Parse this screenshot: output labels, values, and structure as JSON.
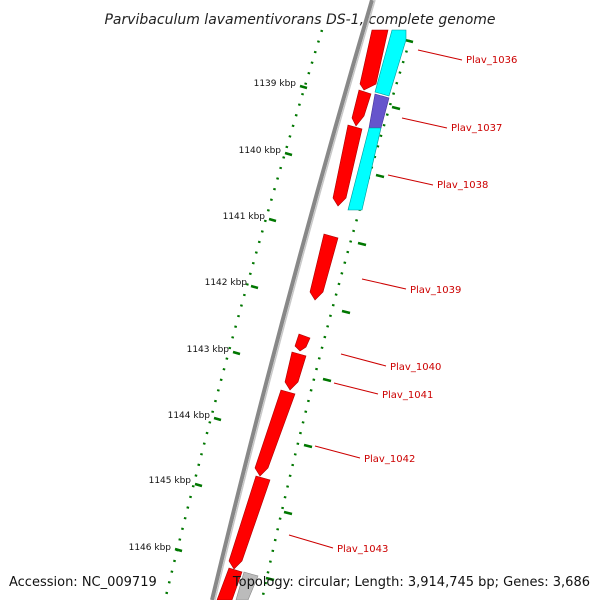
{
  "title": "Parvibaculum lavamentivorans DS-1, complete genome",
  "accession": "Accession: NC_009719",
  "topology": "Topology: circular; Length: 3,914,745 bp; Genes: 3,686",
  "colors": {
    "backbone": "#888888",
    "gene_forward": "#ff0000",
    "gene_reverse": "#00ffff",
    "gene_purple": "#6655cc",
    "gene_grey": "#bbbbbb",
    "tick": "#007700",
    "label": "#cc0000"
  },
  "kbp_ticks": [
    "1139 kbp",
    "1140 kbp",
    "1141 kbp",
    "1142 kbp",
    "1143 kbp",
    "1144 kbp",
    "1145 kbp",
    "1146 kbp"
  ],
  "gene_labels": [
    "Plav_1036",
    "Plav_1037",
    "Plav_1038",
    "Plav_1039",
    "Plav_1040",
    "Plav_1041",
    "Plav_1042",
    "Plav_1043"
  ]
}
